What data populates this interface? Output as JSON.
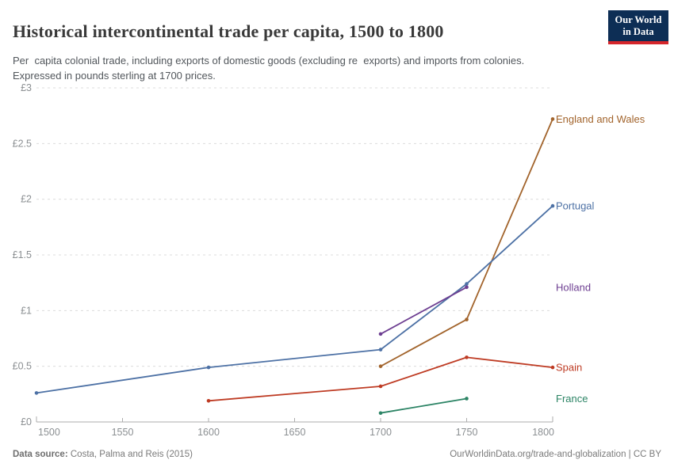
{
  "header": {
    "title": "Historical intercontinental trade per capita, 1500 to 1800",
    "subtitle": "Per  capita colonial trade, including exports of domestic goods (excluding re  exports) and imports from colonies.\nExpressed in pounds sterling at 1700 prices.",
    "logo": {
      "line1": "Our World",
      "line2": "in Data",
      "bg_color": "#0d2e55",
      "accent_color": "#d5262b"
    }
  },
  "footer": {
    "datasource_label": "Data source:",
    "datasource_value": " Costa, Palma and Reis (2015)",
    "attribution": "OurWorldinData.org/trade-and-globalization | CC BY"
  },
  "chart_data": {
    "type": "line",
    "title": "Historical intercontinental trade per capita, 1500 to 1800",
    "xlabel": "",
    "ylabel": "",
    "xlim": [
      1500,
      1800
    ],
    "ylim": [
      0,
      3
    ],
    "x_ticks": [
      1500,
      1550,
      1600,
      1650,
      1700,
      1750,
      1800
    ],
    "y_ticks": [
      {
        "value": 0,
        "label": "£0"
      },
      {
        "value": 0.5,
        "label": "£0.5"
      },
      {
        "value": 1,
        "label": "£1"
      },
      {
        "value": 1.5,
        "label": "£1.5"
      },
      {
        "value": 2,
        "label": "£2"
      },
      {
        "value": 2.5,
        "label": "£2.5"
      },
      {
        "value": 3,
        "label": "£3"
      }
    ],
    "grid": "horizontal-dashed",
    "legend_position": "labels-at-line-ends",
    "series": [
      {
        "name": "England and Wales",
        "color": "#a2642c",
        "points": [
          [
            1700,
            0.5
          ],
          [
            1750,
            0.92
          ],
          [
            1800,
            2.72
          ]
        ]
      },
      {
        "name": "Portugal",
        "color": "#4d71a5",
        "points": [
          [
            1500,
            0.26
          ],
          [
            1600,
            0.49
          ],
          [
            1700,
            0.65
          ],
          [
            1750,
            1.24
          ],
          [
            1800,
            1.94
          ]
        ]
      },
      {
        "name": "Holland",
        "color": "#6d3e91",
        "points": [
          [
            1700,
            0.79
          ],
          [
            1750,
            1.21
          ]
        ]
      },
      {
        "name": "Spain",
        "color": "#be3b23",
        "points": [
          [
            1600,
            0.19
          ],
          [
            1700,
            0.32
          ],
          [
            1750,
            0.58
          ],
          [
            1800,
            0.49
          ]
        ]
      },
      {
        "name": "France",
        "color": "#2c8465",
        "points": [
          [
            1700,
            0.08
          ],
          [
            1750,
            0.21
          ]
        ]
      }
    ],
    "style": {
      "gridline_color": "#dcdcdc",
      "axis_line_color": "#adadad",
      "tick_label_color": "#8b8f92"
    }
  }
}
